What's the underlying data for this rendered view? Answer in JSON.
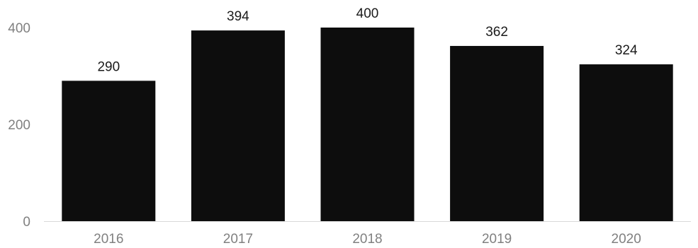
{
  "chart_data": {
    "type": "bar",
    "categories": [
      "2016",
      "2017",
      "2018",
      "2019",
      "2020"
    ],
    "values": [
      290,
      394,
      400,
      362,
      324
    ],
    "data_labels": [
      "290",
      "394",
      "400",
      "362",
      "324"
    ],
    "y_ticks": [
      0,
      200,
      400
    ],
    "y_tick_labels": [
      "0",
      "200",
      "400"
    ],
    "ylim": [
      0,
      400
    ],
    "title": "",
    "xlabel": "",
    "ylabel": "",
    "grid": false,
    "legend": "none",
    "colors": {
      "bar": "#0d0d0d",
      "tick_text": "#808080",
      "label_text": "#1a1a1a",
      "baseline": "#d9d9d9"
    }
  }
}
